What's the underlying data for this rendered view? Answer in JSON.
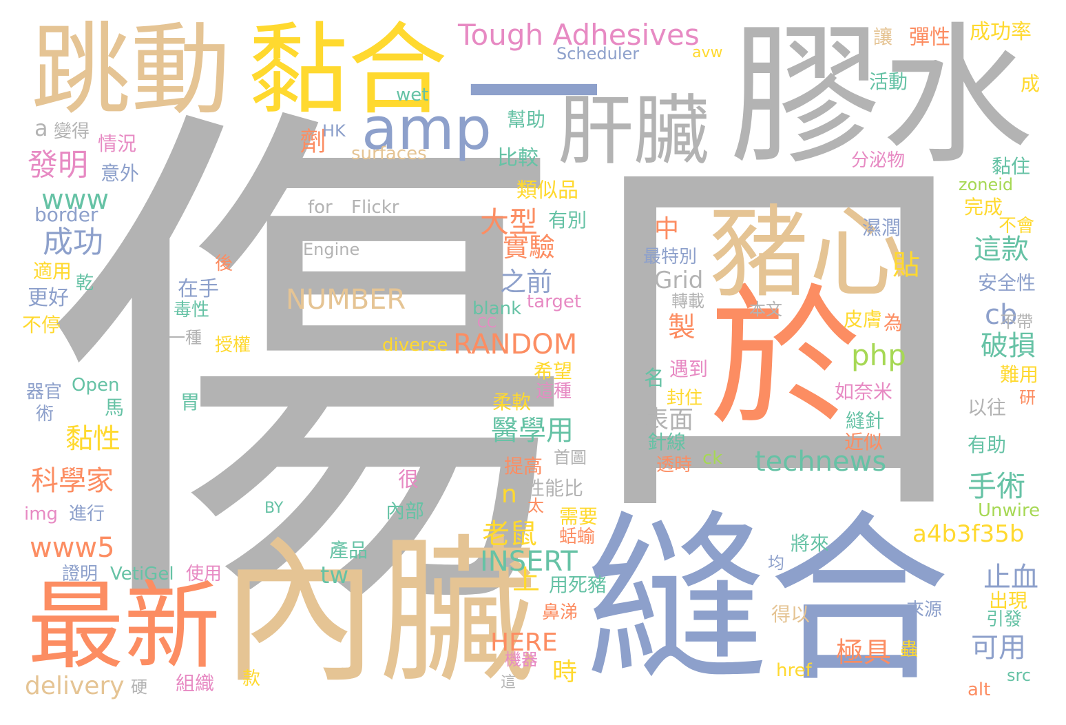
{
  "palette": {
    "gray": "#b3b3b3",
    "tan": "#e5c494",
    "yellow": "#ffd92f",
    "blue": "#8da0cb",
    "orange": "#fc8d62",
    "green": "#66c2a5",
    "pink": "#e78ac3",
    "lime": "#a6d854"
  },
  "words": [
    {
      "text": "傷",
      "color": "#b3b3b3"
    },
    {
      "text": "口",
      "color": "#b3b3b3"
    },
    {
      "text": "膠水",
      "color": "#b3b3b3"
    },
    {
      "text": "縫合",
      "color": "#8da0cb"
    },
    {
      "text": "內臟",
      "color": "#e5c494"
    },
    {
      "text": "跳動",
      "color": "#e5c494"
    },
    {
      "text": "黏合",
      "color": "#ffd92f"
    },
    {
      "text": "一",
      "color": "#8da0cb"
    },
    {
      "text": "於",
      "color": "#fc8d62"
    },
    {
      "text": "豬心",
      "color": "#e5c494"
    },
    {
      "text": "肝臟",
      "color": "#b3b3b3"
    },
    {
      "text": "最新",
      "color": "#fc8d62"
    },
    {
      "text": "amp",
      "color": "#8da0cb"
    },
    {
      "text": "Tough Adhesives",
      "color": "#e78ac3"
    },
    {
      "text": "Scheduler",
      "color": "#8da0cb"
    },
    {
      "text": "avw",
      "color": "#ffd92f"
    },
    {
      "text": "wet",
      "color": "#66c2a5"
    },
    {
      "text": "讓",
      "color": "#e5c494"
    },
    {
      "text": "彈性",
      "color": "#fc8d62"
    },
    {
      "text": "成功率",
      "color": "#ffd92f"
    },
    {
      "text": "活動",
      "color": "#66c2a5"
    },
    {
      "text": "成",
      "color": "#ffd92f"
    },
    {
      "text": "幫助",
      "color": "#66c2a5"
    },
    {
      "text": "a",
      "color": "#b3b3b3"
    },
    {
      "text": "變得",
      "color": "#b3b3b3"
    },
    {
      "text": "HK",
      "color": "#8da0cb"
    },
    {
      "text": "情況",
      "color": "#e78ac3"
    },
    {
      "text": "劑",
      "color": "#fc8d62"
    },
    {
      "text": "發明",
      "color": "#e78ac3"
    },
    {
      "text": "意外",
      "color": "#8da0cb"
    },
    {
      "text": "surfaces",
      "color": "#e5c494"
    },
    {
      "text": "比較",
      "color": "#66c2a5"
    },
    {
      "text": "分泌物",
      "color": "#e78ac3"
    },
    {
      "text": "黏住",
      "color": "#66c2a5"
    },
    {
      "text": "zoneid",
      "color": "#a6d854"
    },
    {
      "text": "www",
      "color": "#66c2a5"
    },
    {
      "text": "border",
      "color": "#8da0cb"
    },
    {
      "text": "for",
      "color": "#b3b3b3"
    },
    {
      "text": "Flickr",
      "color": "#b3b3b3"
    },
    {
      "text": "類似品",
      "color": "#ffd92f"
    },
    {
      "text": "完成",
      "color": "#ffd92f"
    },
    {
      "text": "大型",
      "color": "#fc8d62"
    },
    {
      "text": "有別",
      "color": "#66c2a5"
    },
    {
      "text": "不會",
      "color": "#ffd92f"
    },
    {
      "text": "成功",
      "color": "#8da0cb"
    },
    {
      "text": "Engine",
      "color": "#b3b3b3"
    },
    {
      "text": "實驗",
      "color": "#fc8d62"
    },
    {
      "text": "中",
      "color": "#fc8d62"
    },
    {
      "text": "濕潤",
      "color": "#8da0cb"
    },
    {
      "text": "這款",
      "color": "#66c2a5"
    },
    {
      "text": "最特別",
      "color": "#8da0cb"
    },
    {
      "text": "適用",
      "color": "#ffd92f"
    },
    {
      "text": "後",
      "color": "#fc8d62"
    },
    {
      "text": "乾",
      "color": "#66c2a5"
    },
    {
      "text": "之前",
      "color": "#8da0cb"
    },
    {
      "text": "貼",
      "color": "#ffd92f"
    },
    {
      "text": "Grid",
      "color": "#b3b3b3"
    },
    {
      "text": "安全性",
      "color": "#8da0cb"
    },
    {
      "text": "在手",
      "color": "#8da0cb"
    },
    {
      "text": "更好",
      "color": "#8da0cb"
    },
    {
      "text": "NUMBER",
      "color": "#e5c494"
    },
    {
      "text": "毒性",
      "color": "#66c2a5"
    },
    {
      "text": "blank",
      "color": "#66c2a5"
    },
    {
      "text": "target",
      "color": "#e78ac3"
    },
    {
      "text": "轉載",
      "color": "#b3b3b3"
    },
    {
      "text": "本文",
      "color": "#b3b3b3"
    },
    {
      "text": "cb",
      "color": "#8da0cb"
    },
    {
      "text": "不帶",
      "color": "#b3b3b3"
    },
    {
      "text": "不停",
      "color": "#ffd92f"
    },
    {
      "text": "CC",
      "color": "#e78ac3"
    },
    {
      "text": "製",
      "color": "#fc8d62"
    },
    {
      "text": "皮膚",
      "color": "#ffd92f"
    },
    {
      "text": "為",
      "color": "#fc8d62"
    },
    {
      "text": "一種",
      "color": "#b3b3b3"
    },
    {
      "text": "授權",
      "color": "#ffd92f"
    },
    {
      "text": "diverse",
      "color": "#ffd92f"
    },
    {
      "text": "RANDOM",
      "color": "#fc8d62"
    },
    {
      "text": "php",
      "color": "#a6d854"
    },
    {
      "text": "破損",
      "color": "#66c2a5"
    },
    {
      "text": "遇到",
      "color": "#e78ac3"
    },
    {
      "text": "希望",
      "color": "#ffd92f"
    },
    {
      "text": "名",
      "color": "#66c2a5"
    },
    {
      "text": "器官",
      "color": "#8da0cb"
    },
    {
      "text": "Open",
      "color": "#66c2a5"
    },
    {
      "text": "術",
      "color": "#8da0cb"
    },
    {
      "text": "馬",
      "color": "#66c2a5"
    },
    {
      "text": "胃",
      "color": "#66c2a5"
    },
    {
      "text": "這種",
      "color": "#e78ac3"
    },
    {
      "text": "封住",
      "color": "#ffd92f"
    },
    {
      "text": "如奈米",
      "color": "#e78ac3"
    },
    {
      "text": "難用",
      "color": "#ffd92f"
    },
    {
      "text": "研",
      "color": "#fc8d62"
    },
    {
      "text": "柔軟",
      "color": "#ffd92f"
    },
    {
      "text": "表面",
      "color": "#b3b3b3"
    },
    {
      "text": "以往",
      "color": "#b3b3b3"
    },
    {
      "text": "黏性",
      "color": "#ffd92f"
    },
    {
      "text": "醫學用",
      "color": "#66c2a5"
    },
    {
      "text": "縫針",
      "color": "#66c2a5"
    },
    {
      "text": "針線",
      "color": "#66c2a5"
    },
    {
      "text": "近似",
      "color": "#fc8d62"
    },
    {
      "text": "有助",
      "color": "#66c2a5"
    },
    {
      "text": "科學家",
      "color": "#fc8d62"
    },
    {
      "text": "technews",
      "color": "#66c2a5"
    },
    {
      "text": "首圖",
      "color": "#b3b3b3"
    },
    {
      "text": "ck",
      "color": "#a6d854"
    },
    {
      "text": "提高",
      "color": "#fc8d62"
    },
    {
      "text": "透時",
      "color": "#fc8d62"
    },
    {
      "text": "很",
      "color": "#e78ac3"
    },
    {
      "text": "性能比",
      "color": "#b3b3b3"
    },
    {
      "text": "n",
      "color": "#ffd92f"
    },
    {
      "text": "手術",
      "color": "#66c2a5"
    },
    {
      "text": "img",
      "color": "#e78ac3"
    },
    {
      "text": "進行",
      "color": "#8da0cb"
    },
    {
      "text": "BY",
      "color": "#66c2a5"
    },
    {
      "text": "太",
      "color": "#fc8d62"
    },
    {
      "text": "內部",
      "color": "#66c2a5"
    },
    {
      "text": "需要",
      "color": "#ffd92f"
    },
    {
      "text": "Unwire",
      "color": "#a6d854"
    },
    {
      "text": "老鼠",
      "color": "#ffd92f"
    },
    {
      "text": "a4b3f35b",
      "color": "#ffd92f"
    },
    {
      "text": "www5",
      "color": "#fc8d62"
    },
    {
      "text": "蛞蝓",
      "color": "#fc8d62"
    },
    {
      "text": "將來",
      "color": "#66c2a5"
    },
    {
      "text": "INSERT",
      "color": "#66c2a5"
    },
    {
      "text": "產品",
      "color": "#66c2a5"
    },
    {
      "text": "均",
      "color": "#8da0cb"
    },
    {
      "text": "證明",
      "color": "#8da0cb"
    },
    {
      "text": "VetiGel",
      "color": "#66c2a5"
    },
    {
      "text": "使用",
      "color": "#e78ac3"
    },
    {
      "text": "tw",
      "color": "#66c2a5"
    },
    {
      "text": "上",
      "color": "#ffd92f"
    },
    {
      "text": "止血",
      "color": "#8da0cb"
    },
    {
      "text": "用死豬",
      "color": "#66c2a5"
    },
    {
      "text": "出現",
      "color": "#ffd92f"
    },
    {
      "text": "鼻涕",
      "color": "#fc8d62"
    },
    {
      "text": "來源",
      "color": "#8da0cb"
    },
    {
      "text": "得以",
      "color": "#e5c494"
    },
    {
      "text": "引發",
      "color": "#66c2a5"
    },
    {
      "text": "HERE",
      "color": "#fc8d62"
    },
    {
      "text": "可用",
      "color": "#8da0cb"
    },
    {
      "text": "極具",
      "color": "#fc8d62"
    },
    {
      "text": "蟲",
      "color": "#ffd92f"
    },
    {
      "text": "機器",
      "color": "#e78ac3"
    },
    {
      "text": "時",
      "color": "#ffd92f"
    },
    {
      "text": "href",
      "color": "#ffd92f"
    },
    {
      "text": "src",
      "color": "#66c2a5"
    },
    {
      "text": "delivery",
      "color": "#e5c494"
    },
    {
      "text": "硬",
      "color": "#b3b3b3"
    },
    {
      "text": "組織",
      "color": "#e78ac3"
    },
    {
      "text": "款",
      "color": "#ffd92f"
    },
    {
      "text": "這",
      "color": "#b3b3b3"
    },
    {
      "text": "alt",
      "color": "#fc8d62"
    }
  ]
}
